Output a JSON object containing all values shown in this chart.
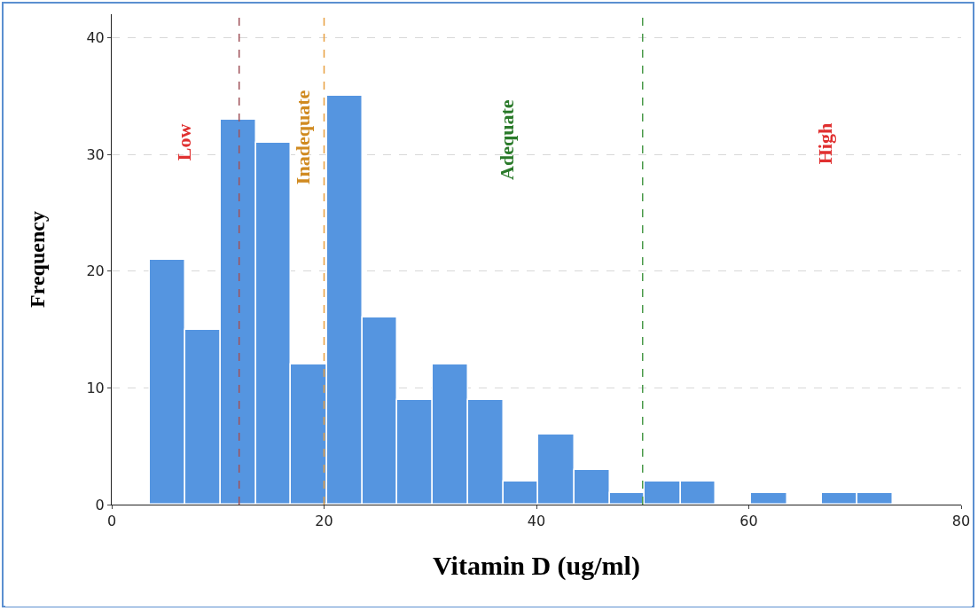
{
  "chart_data": {
    "type": "histogram",
    "xlabel": "Vitamin D (ug/ml)",
    "ylabel": "Frequency",
    "bins": [
      3.6,
      6.9,
      10.3,
      13.6,
      16.9,
      20.3,
      23.6,
      26.9,
      30.2,
      33.6,
      36.9,
      40.2,
      43.6,
      46.9,
      50.2,
      53.6,
      56.9,
      60.2,
      63.6,
      66.9,
      70.2,
      73.6
    ],
    "values": [
      21,
      15,
      33,
      31,
      12,
      35,
      16,
      9,
      12,
      9,
      2,
      6,
      3,
      1,
      2,
      2,
      0,
      1,
      0,
      1,
      1
    ],
    "color": "#5595e0",
    "xlim": [
      0,
      80
    ],
    "xticks": [
      0,
      20,
      40,
      60,
      80
    ],
    "ylim": [
      0,
      42
    ],
    "yticks": [
      0,
      10,
      20,
      30,
      40
    ],
    "grid": "y",
    "ref_lines": [
      {
        "axis": "x",
        "value": 12,
        "color": "#a0525a",
        "line_style": "dashed"
      },
      {
        "axis": "x",
        "value": 20,
        "color": "#e8a040",
        "line_style": "dashed"
      },
      {
        "axis": "x",
        "value": 50,
        "color": "#4a9a4a",
        "line_style": "dashed"
      }
    ],
    "annotations": [
      "Low",
      "Inadequate",
      "Adequate",
      "High"
    ]
  }
}
